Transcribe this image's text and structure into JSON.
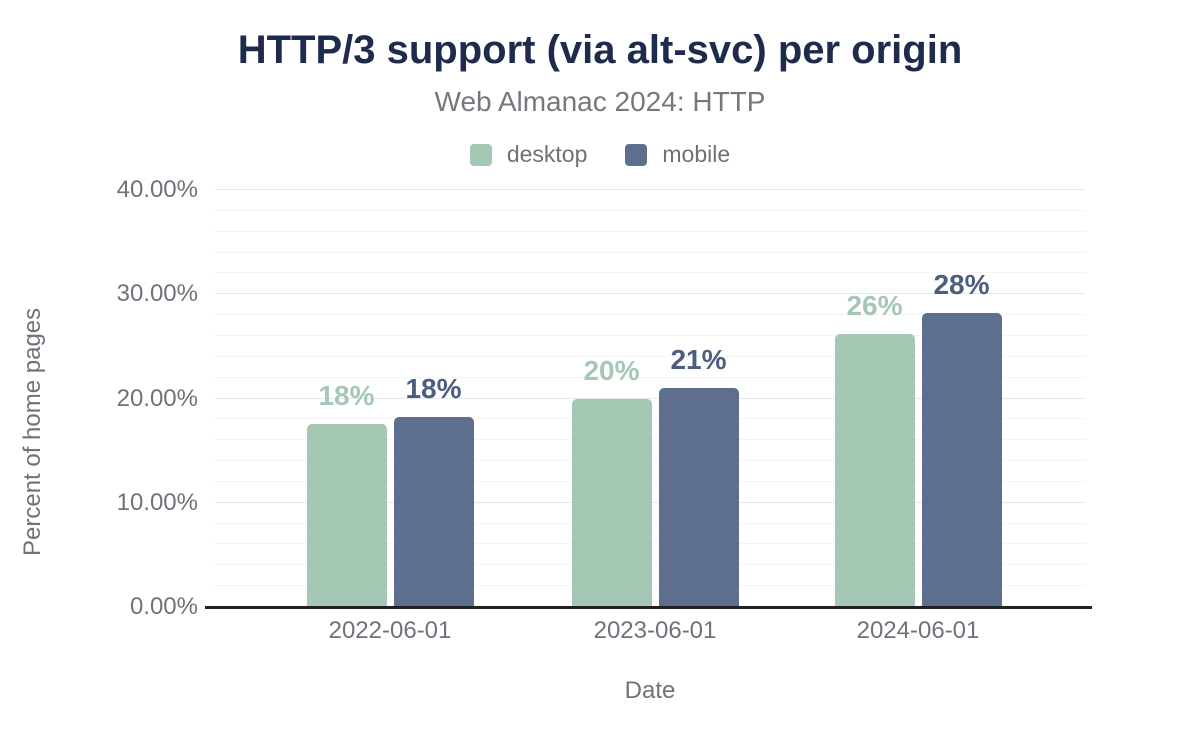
{
  "chart_data": {
    "type": "bar",
    "title": "HTTP/3 support (via alt-svc) per origin",
    "subtitle": "Web Almanac 2024: HTTP",
    "xlabel": "Date",
    "ylabel": "Percent of home pages",
    "categories": [
      "2022-06-01",
      "2023-06-01",
      "2024-06-01"
    ],
    "series": [
      {
        "name": "desktop",
        "color": "#a5c8b5",
        "label_color": "#a5c8b5",
        "values": [
          17.6,
          20.0,
          26.2
        ],
        "labels": [
          "18%",
          "20%",
          "26%"
        ]
      },
      {
        "name": "mobile",
        "color": "#5d6e8e",
        "label_color": "#4c5d80",
        "values": [
          18.2,
          21.0,
          28.2
        ],
        "labels": [
          "18%",
          "21%",
          "28%"
        ]
      }
    ],
    "ylim": [
      0,
      40
    ],
    "ytick_values": [
      0,
      10,
      20,
      30,
      40
    ],
    "ytick_labels": [
      "0.00%",
      "10.00%",
      "20.00%",
      "30.00%",
      "40.00%"
    ],
    "grid": {
      "minor_step": 2,
      "major_step": 10,
      "on": true
    },
    "legend_position": "top",
    "colors": {
      "title": "#1e2b4d",
      "subtitle": "#75787d",
      "axis_text": "#6e737a",
      "axis_line": "#212121",
      "grid_minor": "#f4f4f4",
      "grid_major": "#e7e7e7",
      "background": "#ffffff"
    }
  }
}
